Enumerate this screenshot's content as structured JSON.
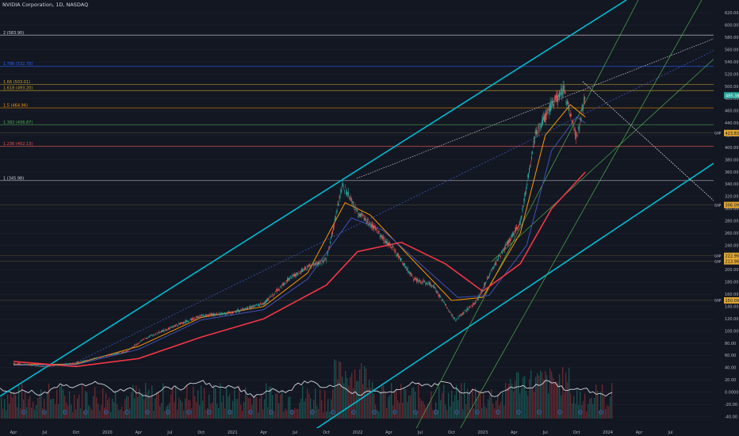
{
  "header": {
    "symbol_title": "NVIDIA Corporation, 1D, NASDAQ"
  },
  "colors": {
    "background": "#131722",
    "channel": "#00bcd4",
    "up": "#26a69a",
    "down": "#ef5350",
    "ma_fast": "#ff9800",
    "ma_mid": "#3f51b5",
    "ma_slow": "#f23645",
    "fib_gold": "#c9a227",
    "fib_blue": "#2962ff",
    "fib_green": "#4caf50",
    "fib_red": "#ef5350",
    "fib_orange": "#ff9800",
    "fib_white": "#d1d4dc",
    "gap_label": "#e0a630"
  },
  "chart_data": {
    "type": "line",
    "title": "NVIDIA Corporation, 1D, NASDAQ",
    "price_axis": {
      "position": "right",
      "ylim": [
        -60,
        640
      ],
      "ticks": [
        620.0,
        600.0,
        580.0,
        560.0,
        540.0,
        520.0,
        500.0,
        480.0,
        460.0,
        440.0,
        420.0,
        400.0,
        380.0,
        360.0,
        340.0,
        320.0,
        300.0,
        280.0,
        260.0,
        240.0,
        220.0,
        200.0,
        180.0,
        160.0,
        140.0,
        120.0,
        100.0,
        80.0,
        60.0,
        40.0,
        20.0,
        0.0,
        -20.0,
        -40.0
      ],
      "tick_labels": [
        "620.00",
        "600.00",
        "580.00",
        "560.00",
        "540.00",
        "520.00",
        "500.00",
        "480.00",
        "460.00",
        "440.00",
        "420.00",
        "400.00",
        "380.00",
        "360.00",
        "340.00",
        "320.00",
        "300.00",
        "280.00",
        "260.00",
        "240.00",
        "220.00",
        "200.00",
        "180.00",
        "160.00",
        "140.00",
        "120.00",
        "100.00",
        "80.00",
        "60.00",
        "40.00",
        "20.00",
        "0.0000",
        "-20.00",
        "-40.00"
      ],
      "last_price": {
        "label": "485.38",
        "value": 485.38
      },
      "gaps": [
        {
          "label": "GAP",
          "value_label": "423.83",
          "value": 423.83
        },
        {
          "label": "GAP",
          "value_label": "306.09",
          "value": 306.09
        },
        {
          "label": "GAP",
          "value_label": "222.96",
          "value": 222.96
        },
        {
          "label": "GAP",
          "value_label": "213.96",
          "value": 213.96
        },
        {
          "label": "GAP",
          "value_label": "150.09",
          "value": 150.09
        }
      ]
    },
    "time_axis": {
      "x_range": [
        2019.25,
        2024.75
      ],
      "labels": [
        {
          "label": "Apr",
          "t": 2019.25
        },
        {
          "label": "Jul",
          "t": 2019.5
        },
        {
          "label": "Oct",
          "t": 2019.75
        },
        {
          "label": "2020",
          "t": 2020.0
        },
        {
          "label": "Apr",
          "t": 2020.25
        },
        {
          "label": "Jul",
          "t": 2020.5
        },
        {
          "label": "Oct",
          "t": 2020.75
        },
        {
          "label": "2021",
          "t": 2021.0
        },
        {
          "label": "Apr",
          "t": 2021.25
        },
        {
          "label": "Jul",
          "t": 2021.5
        },
        {
          "label": "Oct",
          "t": 2021.75
        },
        {
          "label": "2022",
          "t": 2022.0
        },
        {
          "label": "Apr",
          "t": 2022.25
        },
        {
          "label": "Jul",
          "t": 2022.5
        },
        {
          "label": "Oct",
          "t": 2022.75
        },
        {
          "label": "2023",
          "t": 2023.0
        },
        {
          "label": "Apr",
          "t": 2023.25
        },
        {
          "label": "Jul",
          "t": 2023.5
        },
        {
          "label": "Oct",
          "t": 2023.75
        },
        {
          "label": "2024",
          "t": 2024.0
        },
        {
          "label": "Apr",
          "t": 2024.25
        },
        {
          "label": "Jul",
          "t": 2024.5
        }
      ]
    },
    "fib_levels": [
      {
        "label": "2 (583.90)",
        "value": 583.9,
        "color": "#d1d4dc"
      },
      {
        "label": "1.786 (532.78)",
        "value": 532.78,
        "color": "#2962ff"
      },
      {
        "label": "1.66 (503.01)",
        "value": 503.01,
        "color": "#c9a227"
      },
      {
        "label": "1.618 (493.20)",
        "value": 493.2,
        "color": "#c9a227"
      },
      {
        "label": "1.5 (464.94)",
        "value": 464.94,
        "color": "#ff9800"
      },
      {
        "label": "1.382 (436.87)",
        "value": 436.87,
        "color": "#4caf50"
      },
      {
        "label": "1.236 (402.13)",
        "value": 402.13,
        "color": "#ef5350"
      },
      {
        "label": "1 (345.98)",
        "value": 345.98,
        "color": "#d1d4dc"
      }
    ],
    "price_series": {
      "name": "",
      "x": [
        2019.25,
        2019.5,
        2019.75,
        2020.0,
        2020.15,
        2020.3,
        2020.5,
        2020.75,
        2021.0,
        2021.25,
        2021.45,
        2021.6,
        2021.75,
        2021.88,
        2022.0,
        2022.15,
        2022.3,
        2022.45,
        2022.6,
        2022.78,
        2022.95,
        2023.1,
        2023.3,
        2023.42,
        2023.55,
        2023.65,
        2023.75,
        2023.82
      ],
      "y": [
        47,
        42,
        48,
        60,
        66,
        88,
        105,
        125,
        130,
        145,
        185,
        205,
        215,
        340,
        295,
        265,
        230,
        185,
        175,
        118,
        148,
        210,
        278,
        420,
        470,
        495,
        415,
        485
      ]
    },
    "ma_series": [
      {
        "name": "",
        "color": "#ff9800",
        "x": [
          2019.25,
          2019.75,
          2020.25,
          2020.75,
          2021.25,
          2021.6,
          2021.9,
          2022.1,
          2022.4,
          2022.75,
          2023.0,
          2023.3,
          2023.5,
          2023.7,
          2023.82
        ],
        "y": [
          45,
          46,
          75,
          122,
          140,
          195,
          310,
          290,
          225,
          150,
          155,
          260,
          420,
          470,
          450
        ]
      },
      {
        "name": "",
        "color": "#3f51b5",
        "x": [
          2019.25,
          2019.75,
          2020.25,
          2020.75,
          2021.25,
          2021.6,
          2021.95,
          2022.2,
          2022.5,
          2022.8,
          2023.05,
          2023.35,
          2023.55,
          2023.75,
          2023.82
        ],
        "y": [
          44,
          45,
          70,
          118,
          135,
          185,
          285,
          265,
          210,
          155,
          158,
          240,
          395,
          450,
          440
        ]
      },
      {
        "name": "",
        "color": "#f23645",
        "x": [
          2019.25,
          2019.75,
          2020.25,
          2020.75,
          2021.25,
          2021.75,
          2022.0,
          2022.35,
          2022.7,
          2023.0,
          2023.3,
          2023.55,
          2023.82
        ],
        "y": [
          50,
          42,
          55,
          90,
          120,
          175,
          230,
          245,
          210,
          165,
          210,
          300,
          360
        ]
      }
    ],
    "volume": {
      "oscillator_ticks": [
        0.0,
        20.0,
        40.0
      ],
      "approx_shown": "histogram with white oscillator line around 0.0000"
    }
  }
}
